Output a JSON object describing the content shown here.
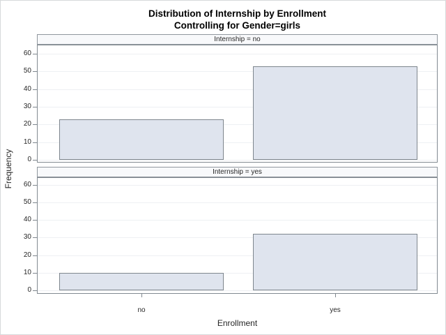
{
  "title": {
    "line1": "Distribution of Internship by Enrollment",
    "line2": "Controlling for Gender=girls"
  },
  "chart_data": {
    "type": "bar",
    "title": "Distribution of Internship by Enrollment",
    "subtitle": "Controlling for Gender=girls",
    "xlabel": "Enrollment",
    "ylabel": "Frequency",
    "categories": [
      "no",
      "yes"
    ],
    "yticks": [
      0,
      10,
      20,
      30,
      40,
      50,
      60
    ],
    "ylim": [
      0,
      63
    ],
    "grid": true,
    "legend_position": "none",
    "panels": [
      {
        "label": "Internship = no",
        "values": [
          23,
          53
        ]
      },
      {
        "label": "Internship = yes",
        "values": [
          10,
          32
        ]
      }
    ]
  },
  "colors": {
    "bar_fill": "#dfe4ee",
    "bar_border": "#7e868d",
    "grid_line": "#eef0f3",
    "panel_border": "#828a91",
    "header_bg": "#f8f9fb",
    "header_border": "#8f969d",
    "figure_border": "#d7d9db",
    "text": "#262626"
  }
}
